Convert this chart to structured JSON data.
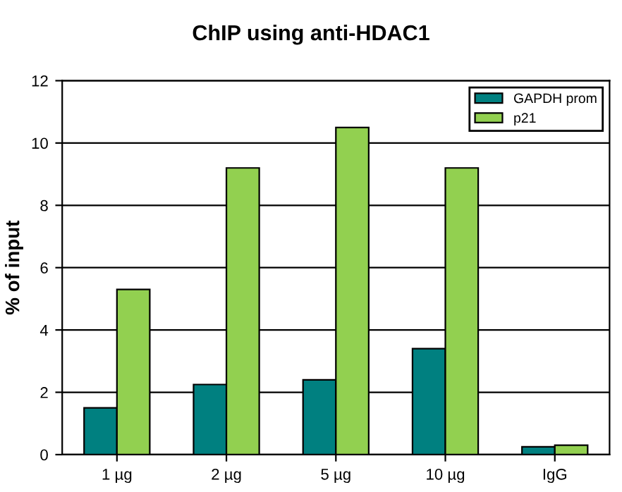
{
  "chart_data": {
    "type": "bar",
    "title": "ChIP using anti-HDAC1",
    "ylabel": "% of input",
    "categories": [
      "1 µg",
      "2 µg",
      "5 µg",
      "10 µg",
      "IgG"
    ],
    "series": [
      {
        "name": "GAPDH prom",
        "color": "#008080",
        "values": [
          1.5,
          2.25,
          2.4,
          3.4,
          0.25
        ]
      },
      {
        "name": "p21",
        "color": "#92d050",
        "values": [
          5.3,
          9.2,
          10.5,
          9.2,
          0.3
        ]
      }
    ],
    "ylim": [
      0,
      12
    ],
    "yticks": [
      0,
      2,
      4,
      6,
      8,
      10,
      12
    ],
    "grid": "y",
    "legend": "top right"
  }
}
